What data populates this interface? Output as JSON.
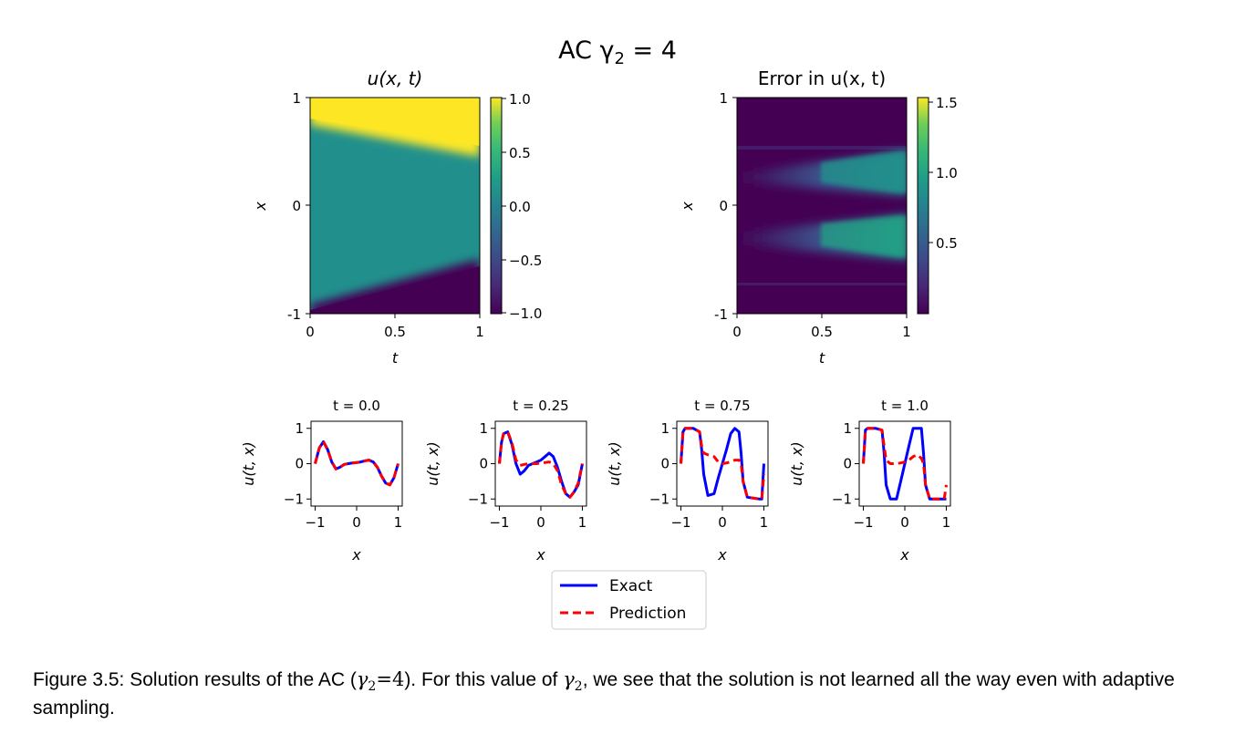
{
  "figure": {
    "suptitle": "AC γ",
    "suptitle_sub": "2",
    "suptitle_tail": " = 4"
  },
  "chart_data": [
    {
      "type": "heatmap",
      "title": "u(x, t)",
      "xlabel": "t",
      "ylabel": "x",
      "xlim": [
        0,
        1
      ],
      "ylim": [
        -1,
        1
      ],
      "xticks": [
        "0",
        "0.5",
        "1"
      ],
      "yticks": [
        "-1",
        "0",
        "1"
      ],
      "colormap": "viridis",
      "colorbar": {
        "range": [
          -1.0,
          1.0
        ],
        "ticks": [
          "1.0",
          "0.5",
          "0.0",
          "−0.5",
          "−1.0"
        ],
        "tick_values": [
          1.0,
          0.5,
          0.0,
          -0.5,
          -1.0
        ]
      },
      "description_regions": [
        {
          "region": "x above front",
          "value": 1.0
        },
        {
          "region": "middle band",
          "value": 0.0
        },
        {
          "region": "x below front",
          "value": -1.0
        }
      ],
      "upper_front_x": {
        "t": [
          0,
          1
        ],
        "x": [
          0.75,
          0.45
        ]
      },
      "lower_front_x": {
        "t": [
          0,
          1
        ],
        "x": [
          -0.9,
          -0.5
        ]
      }
    },
    {
      "type": "heatmap",
      "title": "Error in u(x, t)",
      "xlabel": "t",
      "ylabel": "x",
      "xlim": [
        0,
        1
      ],
      "ylim": [
        -1,
        1
      ],
      "xticks": [
        "0",
        "0.5",
        "1"
      ],
      "yticks": [
        "-1",
        "0",
        "1"
      ],
      "colormap": "viridis",
      "colorbar": {
        "range": [
          0.0,
          1.55
        ],
        "ticks": [
          "1.5",
          "1.0",
          "0.5"
        ],
        "tick_values": [
          1.5,
          1.0,
          0.5
        ]
      }
    },
    {
      "type": "line",
      "title": "t = 0.0",
      "xlabel": "x",
      "ylabel": "u(t, x)",
      "xlim": [
        -1.1,
        1.1
      ],
      "ylim": [
        -1.2,
        1.2
      ],
      "xticks": [
        "−1",
        "0",
        "1"
      ],
      "yticks": [
        "1",
        "0",
        "−1"
      ],
      "x": [
        -1.0,
        -0.9,
        -0.8,
        -0.7,
        -0.6,
        -0.5,
        -0.4,
        -0.3,
        -0.2,
        -0.1,
        0.0,
        0.1,
        0.2,
        0.3,
        0.4,
        0.5,
        0.6,
        0.7,
        0.8,
        0.9,
        1.0
      ],
      "series": [
        {
          "name": "Exact",
          "values": [
            0.0,
            0.45,
            0.62,
            0.4,
            0.05,
            -0.15,
            -0.1,
            -0.02,
            0.0,
            0.02,
            0.03,
            0.05,
            0.08,
            0.1,
            0.05,
            -0.1,
            -0.35,
            -0.55,
            -0.6,
            -0.4,
            0.0
          ]
        },
        {
          "name": "Prediction",
          "values": [
            0.0,
            0.45,
            0.62,
            0.4,
            0.05,
            -0.15,
            -0.1,
            -0.02,
            0.0,
            0.02,
            0.03,
            0.05,
            0.08,
            0.1,
            0.05,
            -0.1,
            -0.35,
            -0.55,
            -0.6,
            -0.4,
            0.0
          ]
        }
      ]
    },
    {
      "type": "line",
      "title": "t = 0.25",
      "xlabel": "x",
      "ylabel": "u(t, x)",
      "xlim": [
        -1.1,
        1.1
      ],
      "ylim": [
        -1.2,
        1.2
      ],
      "xticks": [
        "−1",
        "0",
        "1"
      ],
      "yticks": [
        "1",
        "0",
        "−1"
      ],
      "x": [
        -1.0,
        -0.95,
        -0.9,
        -0.8,
        -0.7,
        -0.6,
        -0.5,
        -0.4,
        -0.3,
        -0.2,
        -0.1,
        0.0,
        0.1,
        0.2,
        0.3,
        0.4,
        0.5,
        0.6,
        0.7,
        0.8,
        0.9,
        1.0
      ],
      "series": [
        {
          "name": "Exact",
          "values": [
            0.0,
            0.6,
            0.85,
            0.9,
            0.55,
            0.0,
            -0.3,
            -0.2,
            -0.05,
            0.0,
            0.05,
            0.1,
            0.2,
            0.3,
            0.2,
            -0.1,
            -0.5,
            -0.85,
            -0.95,
            -0.8,
            -0.6,
            0.0
          ]
        },
        {
          "name": "Prediction",
          "values": [
            0.0,
            0.6,
            0.85,
            0.9,
            0.6,
            0.1,
            -0.05,
            -0.02,
            0.0,
            0.0,
            0.0,
            0.02,
            0.03,
            0.05,
            0.0,
            -0.2,
            -0.6,
            -0.85,
            -0.95,
            -0.8,
            -0.55,
            0.0
          ]
        }
      ]
    },
    {
      "type": "line",
      "title": "t = 0.75",
      "xlabel": "x",
      "ylabel": "u(t, x)",
      "xlim": [
        -1.1,
        1.1
      ],
      "ylim": [
        -1.2,
        1.2
      ],
      "xticks": [
        "−1",
        "0",
        "1"
      ],
      "yticks": [
        "1",
        "0",
        "−1"
      ],
      "x": [
        -1.0,
        -0.95,
        -0.9,
        -0.7,
        -0.55,
        -0.5,
        -0.45,
        -0.35,
        -0.2,
        -0.1,
        0.0,
        0.1,
        0.2,
        0.3,
        0.4,
        0.45,
        0.5,
        0.6,
        0.9,
        0.95,
        1.0
      ],
      "series": [
        {
          "name": "Exact",
          "values": [
            0.0,
            0.9,
            1.0,
            1.0,
            0.9,
            0.4,
            -0.3,
            -0.9,
            -0.85,
            -0.4,
            0.0,
            0.4,
            0.85,
            1.0,
            0.9,
            0.3,
            -0.5,
            -0.95,
            -1.0,
            -1.0,
            0.0
          ]
        },
        {
          "name": "Prediction",
          "values": [
            0.0,
            0.9,
            1.0,
            1.0,
            0.9,
            0.5,
            0.3,
            0.25,
            0.2,
            0.05,
            0.0,
            0.02,
            0.05,
            0.1,
            0.1,
            0.0,
            -0.5,
            -0.95,
            -1.0,
            -1.0,
            -0.3
          ]
        }
      ]
    },
    {
      "type": "line",
      "title": "t = 1.0",
      "xlabel": "x",
      "ylabel": "u(t, x)",
      "xlim": [
        -1.1,
        1.1
      ],
      "ylim": [
        -1.2,
        1.2
      ],
      "xticks": [
        "−1",
        "0",
        "1"
      ],
      "yticks": [
        "1",
        "0",
        "−1"
      ],
      "x": [
        -1.0,
        -0.95,
        -0.9,
        -0.7,
        -0.55,
        -0.5,
        -0.45,
        -0.35,
        -0.2,
        -0.1,
        0.0,
        0.1,
        0.2,
        0.3,
        0.4,
        0.45,
        0.5,
        0.6,
        0.9,
        0.95,
        1.0
      ],
      "series": [
        {
          "name": "Exact",
          "values": [
            0.0,
            0.95,
            1.0,
            1.0,
            0.95,
            0.3,
            -0.6,
            -1.0,
            -1.0,
            -0.5,
            0.0,
            0.5,
            1.0,
            1.0,
            1.0,
            0.3,
            -0.6,
            -1.0,
            -1.0,
            -1.0,
            -1.0
          ]
        },
        {
          "name": "Prediction",
          "values": [
            0.0,
            0.95,
            1.0,
            1.0,
            0.95,
            0.5,
            0.1,
            0.0,
            0.0,
            0.02,
            0.05,
            0.1,
            0.2,
            0.25,
            0.15,
            0.0,
            -0.6,
            -1.0,
            -1.0,
            -1.0,
            -0.6
          ]
        }
      ]
    }
  ],
  "legend": {
    "entries": [
      {
        "label": "Exact",
        "color": "#0000ff",
        "style": "solid"
      },
      {
        "label": "Prediction",
        "color": "#ff0000",
        "style": "dashed"
      }
    ]
  },
  "caption": {
    "part1": "Figure 3.5: Solution results of the AC (",
    "math1": "γ",
    "sub1": "2",
    "eq1": "=4",
    "part2": "). For this value of ",
    "math2": "γ",
    "sub2": "2",
    "part3": ", we see that the solution is not learned all the way even with adaptive sampling."
  },
  "colors": {
    "exact": "#0000ff",
    "prediction": "#ff0000"
  }
}
